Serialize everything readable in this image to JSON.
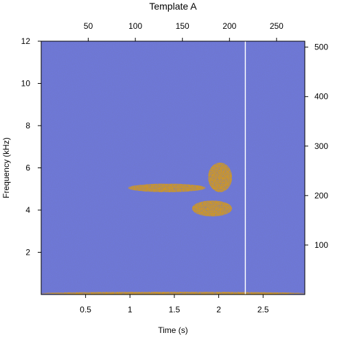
{
  "chart_data": {
    "type": "heatmap",
    "title": "Template A",
    "xlabel": "Time (s)",
    "ylabel": "Frequency (kHz)",
    "xlim": [
      0.0,
      2.97
    ],
    "ylim": [
      0.0,
      12.0
    ],
    "x_ticks": [
      0.5,
      1,
      1.5,
      2,
      2.5
    ],
    "y_ticks": [
      2,
      4,
      6,
      8,
      10,
      12
    ],
    "top_axis": {
      "lim": [
        0,
        280
      ],
      "ticks": [
        50,
        100,
        150,
        200,
        250
      ]
    },
    "right_axis": {
      "lim": [
        0,
        512
      ],
      "ticks": [
        100,
        200,
        300,
        400,
        500
      ]
    },
    "background_color": "#6f78e0",
    "template_color": "#c9952e",
    "marker_line": {
      "time": 2.3,
      "color": "#ffffff"
    },
    "template_regions": [
      {
        "time_start": 0.98,
        "time_end": 1.85,
        "freq_low": 4.85,
        "freq_high": 5.25
      },
      {
        "time_start": 1.7,
        "time_end": 2.15,
        "freq_low": 3.7,
        "freq_high": 4.45
      },
      {
        "time_start": 1.88,
        "time_end": 2.15,
        "freq_low": 4.85,
        "freq_high": 6.25
      },
      {
        "time_start": 0.0,
        "time_end": 2.97,
        "freq_low": 0.0,
        "freq_high": 0.12
      }
    ]
  }
}
